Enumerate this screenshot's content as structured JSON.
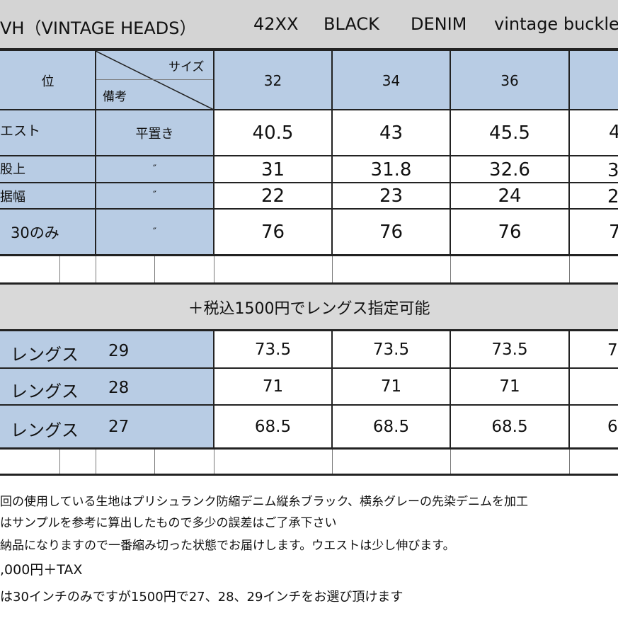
{
  "title": {
    "brand": "VH（VINTAGE HEADS）",
    "model": "42XX",
    "color": "BLACK",
    "fabric": "DENIM",
    "style": "vintage buckle"
  },
  "header": {
    "position_label": "位",
    "size_label": "サイズ",
    "remarks_label": "備考",
    "sizes": [
      "32",
      "34",
      "36"
    ]
  },
  "rows": [
    {
      "label": "エスト",
      "remark": "平置き",
      "values": [
        "40.5",
        "43",
        "45.5"
      ],
      "cut": "4"
    },
    {
      "label": "股上",
      "remark": "″",
      "values": [
        "31",
        "31.8",
        "32.6"
      ],
      "cut": "3"
    },
    {
      "label": "据幅",
      "remark": "″",
      "values": [
        "22",
        "23",
        "24"
      ],
      "cut": "2"
    },
    {
      "label": "30のみ",
      "remark": "″",
      "values": [
        "76",
        "76",
        "76"
      ],
      "cut": "7"
    }
  ],
  "length_banner": "＋税込1500円でレングス指定可能",
  "length_rows": [
    {
      "label": "レングス",
      "size": "29",
      "values": [
        "73.5",
        "73.5",
        "73.5"
      ],
      "cut": "7"
    },
    {
      "label": "レングス",
      "size": "28",
      "values": [
        "71",
        "71",
        "71"
      ],
      "cut": ""
    },
    {
      "label": "レングス",
      "size": "27",
      "values": [
        "68.5",
        "68.5",
        "68.5"
      ],
      "cut": "6"
    }
  ],
  "notes": [
    "回の使用している生地はプリシュランク防縮デニム縦糸ブラック、横糸グレーの先染デニムを加工",
    "はサンプルを参考に算出したもので多少の誤差はご了承下さい",
    "納品になりますので一番縮み切った状態でお届けします。ウエストは少し伸びます。",
    ",000円＋TAX",
    "は30インチのみですが1500円で27、28、29インチをお選び頂けます"
  ],
  "colors": {
    "header_blue": "#b8cce4",
    "banner_gray": "#d9d9d9",
    "title_gray": "#d4d4d4",
    "line": "#222222"
  }
}
